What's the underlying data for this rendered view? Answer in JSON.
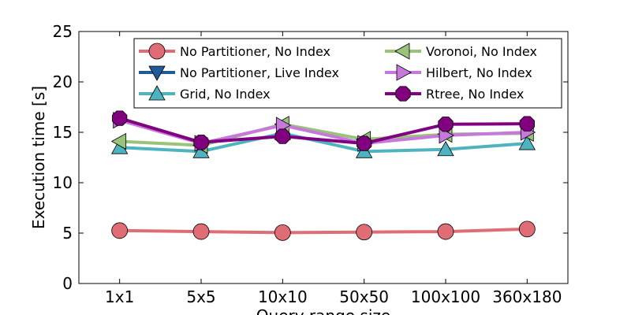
{
  "chart_data": {
    "type": "line",
    "title": "",
    "xlabel": "Query range size",
    "ylabel": "Execution time [s]",
    "categories": [
      "1x1",
      "5x5",
      "10x10",
      "50x50",
      "100x100",
      "360x180"
    ],
    "ylim": [
      0,
      25
    ],
    "yticks": [
      "0",
      "5",
      "10",
      "15",
      "20",
      "25"
    ],
    "grid": false,
    "legend_position": "top-right",
    "series": [
      {
        "name": "No Partitioner, No Index",
        "color": "#e06c75",
        "marker": "circle",
        "values": [
          5.25,
          5.15,
          5.05,
          5.1,
          5.15,
          5.4
        ]
      },
      {
        "name": "No Partitioner, Live Index",
        "color": "#1f5b99",
        "marker": "triangle-down",
        "values": [
          null,
          null,
          null,
          null,
          null,
          null
        ]
      },
      {
        "name": "Grid, No Index",
        "color": "#4fb3bf",
        "marker": "triangle-up",
        "values": [
          13.5,
          13.1,
          14.9,
          13.1,
          13.3,
          13.9
        ]
      },
      {
        "name": "Voronoi, No Index",
        "color": "#98c379",
        "marker": "triangle-left",
        "values": [
          14.1,
          13.7,
          15.8,
          14.3,
          14.8,
          14.9
        ]
      },
      {
        "name": "Hilbert, No Index",
        "color": "#c678dd",
        "marker": "triangle-right",
        "values": [
          16.2,
          13.9,
          15.7,
          13.9,
          14.7,
          15.0
        ]
      },
      {
        "name": "Rtree, No Index",
        "color": "#800080",
        "marker": "octagon",
        "values": [
          16.4,
          14.0,
          14.6,
          13.9,
          15.8,
          15.85
        ]
      }
    ]
  }
}
